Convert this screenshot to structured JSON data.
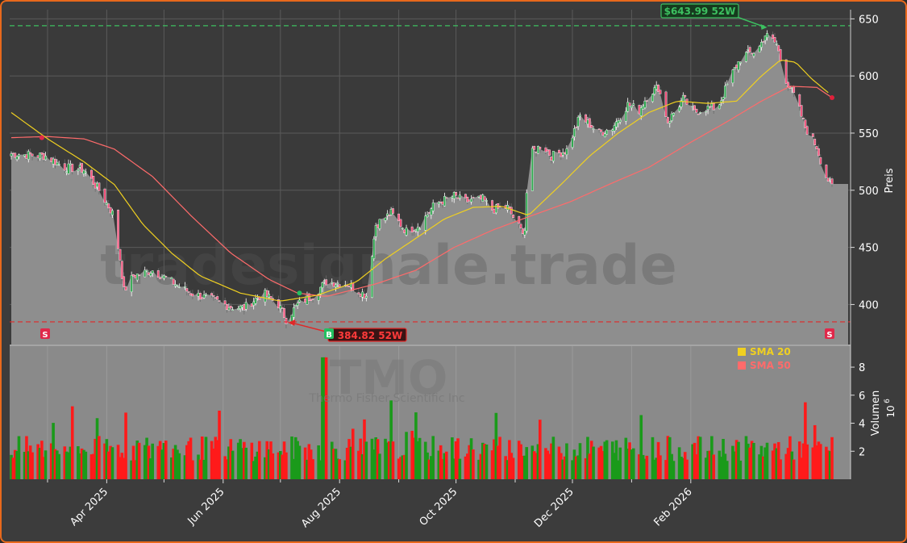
{
  "chart_data": {
    "type": "candlestick",
    "watermark": "tradesignale.trade",
    "ticker": "TMO",
    "company": "Thermo Fisher Scientific Inc",
    "price_axis": {
      "label": "Preis",
      "ylim": [
        365,
        658
      ],
      "ticks": [
        400,
        450,
        500,
        550,
        600,
        650
      ]
    },
    "volume_axis": {
      "label": "Volumen",
      "multiplier": "10",
      "exponent": "6",
      "ylim": [
        0,
        9.5
      ],
      "ticks": [
        2,
        4,
        6,
        8
      ]
    },
    "x_axis": {
      "labels": [
        "Apr 2025",
        "Jun 2025",
        "Aug 2025",
        "Oct 2025",
        "Dec 2025",
        "Feb 2026"
      ]
    },
    "legend": [
      {
        "label": "SMA 20",
        "color": "#f0d020"
      },
      {
        "label": "SMA 50",
        "color": "#ff6b6b"
      }
    ],
    "annotations": {
      "high": {
        "label": "$643.99 52W",
        "value": 643.99
      },
      "low": {
        "label": "384.82 52W",
        "value": 384.82
      }
    },
    "signals": [
      {
        "type": "S",
        "when": "2025-02-26"
      },
      {
        "type": "B",
        "when": "2025-07-11"
      },
      {
        "type": "S",
        "when": "2026-02-20"
      }
    ],
    "price_anchors": [
      [
        "2025-02-10",
        532
      ],
      [
        "2025-02-28",
        530
      ],
      [
        "2025-03-10",
        520
      ],
      [
        "2025-03-20",
        518
      ],
      [
        "2025-03-28",
        500
      ],
      [
        "2025-04-04",
        480
      ],
      [
        "2025-04-08",
        440
      ],
      [
        "2025-04-10",
        412
      ],
      [
        "2025-04-15",
        425
      ],
      [
        "2025-04-25",
        430
      ],
      [
        "2025-05-05",
        420
      ],
      [
        "2025-05-15",
        410
      ],
      [
        "2025-05-25",
        405
      ],
      [
        "2025-06-05",
        398
      ],
      [
        "2025-06-12",
        397
      ],
      [
        "2025-06-22",
        410
      ],
      [
        "2025-06-30",
        400
      ],
      [
        "2025-07-04",
        387
      ],
      [
        "2025-07-10",
        400
      ],
      [
        "2025-07-18",
        408
      ],
      [
        "2025-07-25",
        420
      ],
      [
        "2025-08-05",
        418
      ],
      [
        "2025-08-15",
        408
      ],
      [
        "2025-08-20",
        470
      ],
      [
        "2025-08-28",
        480
      ],
      [
        "2025-09-05",
        464
      ],
      [
        "2025-09-12",
        470
      ],
      [
        "2025-09-20",
        488
      ],
      [
        "2025-09-30",
        495
      ],
      [
        "2025-10-05",
        490
      ],
      [
        "2025-10-15",
        492
      ],
      [
        "2025-10-20",
        483
      ],
      [
        "2025-10-28",
        485
      ],
      [
        "2025-11-04",
        465
      ],
      [
        "2025-11-06",
        466
      ],
      [
        "2025-11-08",
        530
      ],
      [
        "2025-11-15",
        540
      ],
      [
        "2025-11-20",
        530
      ],
      [
        "2025-11-28",
        535
      ],
      [
        "2025-12-05",
        565
      ],
      [
        "2025-12-15",
        550
      ],
      [
        "2025-12-22",
        555
      ],
      [
        "2025-12-30",
        575
      ],
      [
        "2026-01-05",
        570
      ],
      [
        "2026-01-10",
        585
      ],
      [
        "2026-01-15",
        590
      ],
      [
        "2026-01-20",
        560
      ],
      [
        "2026-01-28",
        580
      ],
      [
        "2026-02-03",
        568
      ],
      [
        "2026-02-08",
        572
      ],
      [
        "2026-02-15",
        572
      ],
      [
        "2026-02-22",
        600
      ],
      [
        "2026-02-28",
        618
      ],
      [
        "2026-03-08",
        622
      ],
      [
        "2026-03-12",
        636
      ],
      [
        "2026-03-18",
        628
      ],
      [
        "2026-03-22",
        600
      ],
      [
        "2026-03-28",
        580
      ],
      [
        "2026-04-02",
        555
      ],
      [
        "2026-04-08",
        538
      ],
      [
        "2026-04-12",
        515
      ],
      [
        "2026-04-16",
        503
      ]
    ],
    "sma20_anchors": [
      [
        "2025-02-10",
        568
      ],
      [
        "2025-03-01",
        545
      ],
      [
        "2025-03-20",
        525
      ],
      [
        "2025-04-05",
        505
      ],
      [
        "2025-04-20",
        470
      ],
      [
        "2025-05-05",
        445
      ],
      [
        "2025-05-20",
        425
      ],
      [
        "2025-06-10",
        410
      ],
      [
        "2025-07-01",
        403
      ],
      [
        "2025-07-20",
        408
      ],
      [
        "2025-08-10",
        420
      ],
      [
        "2025-08-25",
        440
      ],
      [
        "2025-09-10",
        458
      ],
      [
        "2025-09-25",
        475
      ],
      [
        "2025-10-10",
        485
      ],
      [
        "2025-10-25",
        486
      ],
      [
        "2025-11-08",
        478
      ],
      [
        "2025-11-25",
        505
      ],
      [
        "2025-12-10",
        530
      ],
      [
        "2025-12-25",
        550
      ],
      [
        "2026-01-10",
        568
      ],
      [
        "2026-01-25",
        578
      ],
      [
        "2026-02-10",
        576
      ],
      [
        "2026-02-25",
        578
      ],
      [
        "2026-03-10",
        600
      ],
      [
        "2026-03-20",
        614
      ],
      [
        "2026-03-28",
        612
      ],
      [
        "2026-04-05",
        598
      ],
      [
        "2026-04-15",
        584
      ]
    ],
    "sma50_anchors": [
      [
        "2025-02-10",
        546
      ],
      [
        "2025-03-01",
        547
      ],
      [
        "2025-03-20",
        545
      ],
      [
        "2025-04-05",
        536
      ],
      [
        "2025-04-25",
        512
      ],
      [
        "2025-05-15",
        478
      ],
      [
        "2025-06-05",
        445
      ],
      [
        "2025-06-25",
        422
      ],
      [
        "2025-07-10",
        410
      ],
      [
        "2025-07-25",
        407
      ],
      [
        "2025-08-20",
        418
      ],
      [
        "2025-09-10",
        430
      ],
      [
        "2025-09-30",
        450
      ],
      [
        "2025-10-20",
        465
      ],
      [
        "2025-11-10",
        478
      ],
      [
        "2025-11-30",
        490
      ],
      [
        "2025-12-20",
        505
      ],
      [
        "2026-01-10",
        520
      ],
      [
        "2026-01-30",
        540
      ],
      [
        "2026-02-20",
        560
      ],
      [
        "2026-03-10",
        578
      ],
      [
        "2026-03-25",
        591
      ],
      [
        "2026-04-08",
        590
      ],
      [
        "2026-04-16",
        581
      ]
    ]
  }
}
